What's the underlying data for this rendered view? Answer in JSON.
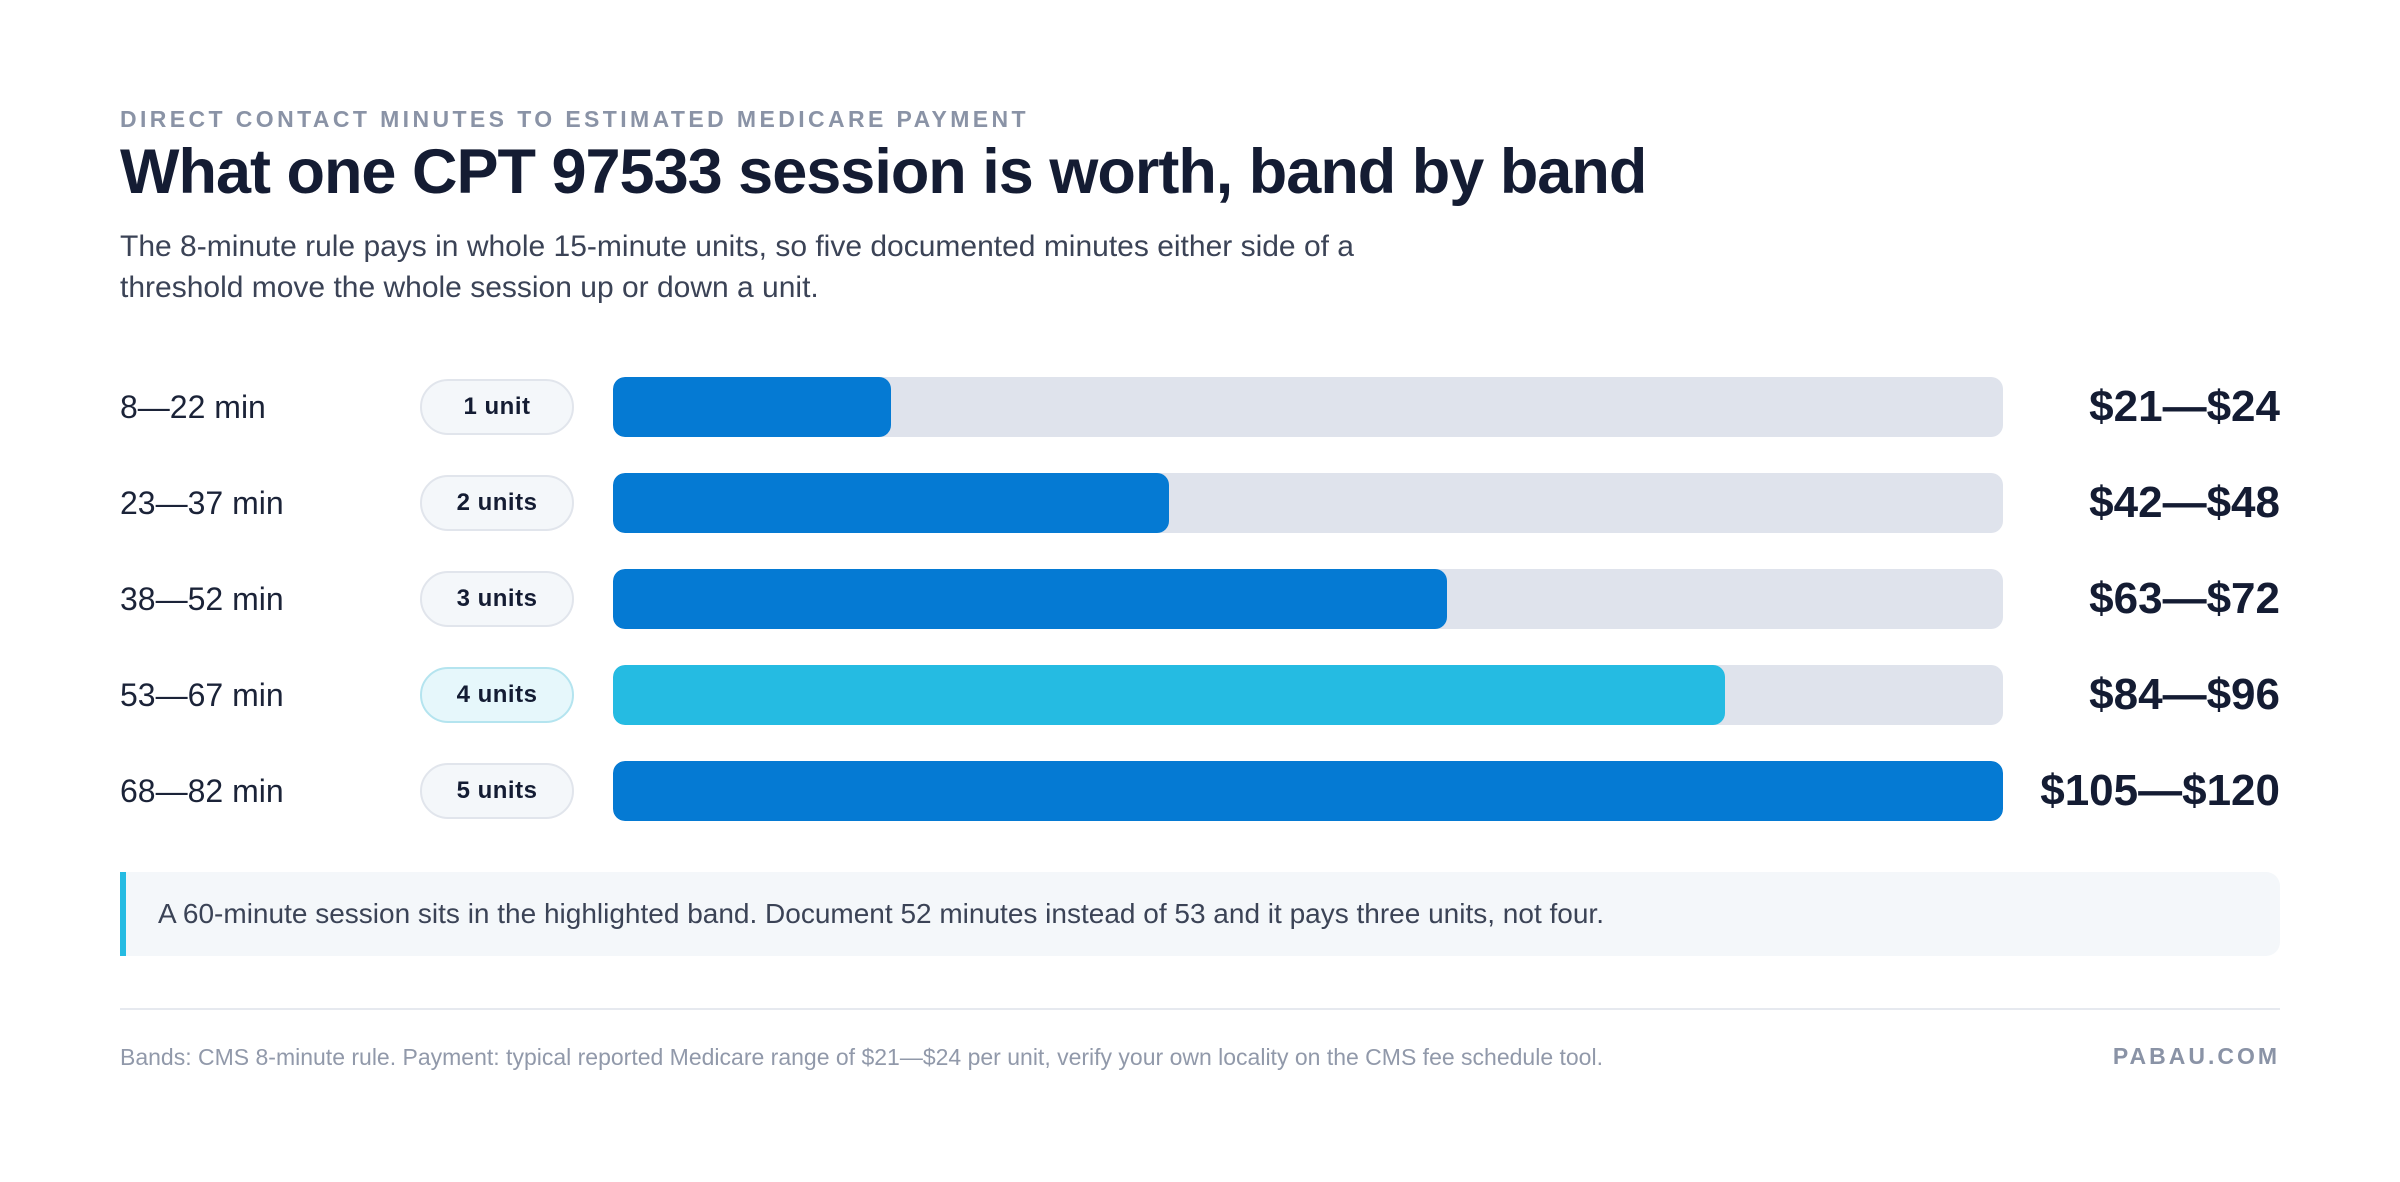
{
  "header": {
    "eyebrow": "DIRECT CONTACT MINUTES TO ESTIMATED MEDICARE PAYMENT",
    "title": "What one CPT 97533 session is worth, band by band",
    "subtitle": "The 8-minute rule pays in whole 15-minute units, so five documented minutes either side of a threshold move the whole session up or down a unit."
  },
  "chart_data": {
    "type": "bar",
    "orientation": "horizontal",
    "categories": [
      "8—22 min",
      "23—37 min",
      "38—52 min",
      "53—67 min",
      "68—82 min"
    ],
    "unit_labels": [
      "1 unit",
      "2 units",
      "3 units",
      "4 units",
      "5 units"
    ],
    "values": [
      1,
      2,
      3,
      4,
      5
    ],
    "value_labels": [
      "$21—$24",
      "$42—$48",
      "$63—$72",
      "$84—$96",
      "$105—$120"
    ],
    "xlim": [
      0,
      5
    ],
    "highlight_index": 3,
    "colors": {
      "bar": "#057ad3",
      "highlight": "#25bbe2",
      "track": "#dfe3ec"
    },
    "grid": false,
    "legend": "none"
  },
  "callout": {
    "text": "A 60-minute session sits in the highlighted band. Document 52 minutes instead of 53 and it pays three units, not four."
  },
  "footer": {
    "source": "Bands: CMS 8-minute rule. Payment: typical reported Medicare range of $21—$24 per unit, verify your own locality on the CMS fee schedule tool.",
    "brand": "PABAU.COM"
  }
}
